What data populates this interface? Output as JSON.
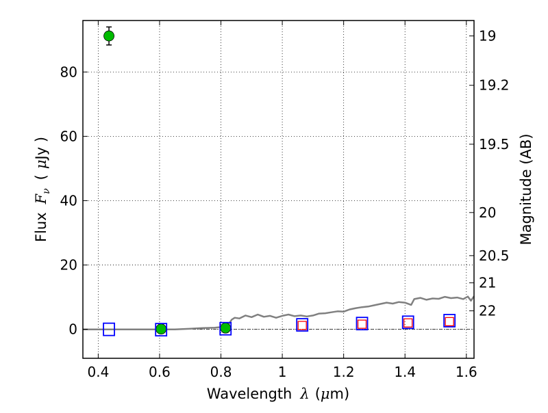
{
  "chart_data": {
    "type": "scatter",
    "xlabel": {
      "prefix": "Wavelength",
      "symbol": "λ",
      "unit_open": "(",
      "unit_mu": "μ",
      "unit_rest": "m)"
    },
    "ylabel": {
      "prefix": "Flux",
      "symbol": "F",
      "symbol_sub": "ν",
      "unit_open": "(",
      "unit_mu": "μ",
      "unit_rest": "Jy )"
    },
    "y2label": "Magnitude (AB)",
    "xlim": [
      0.35,
      1.625
    ],
    "ylim": [
      -9,
      96
    ],
    "grid": true,
    "x_ticks": [
      {
        "value": 0.4,
        "label": "0.4"
      },
      {
        "value": 0.6,
        "label": "0.6"
      },
      {
        "value": 0.8,
        "label": "0.8"
      },
      {
        "value": 1.0,
        "label": "1"
      },
      {
        "value": 1.2,
        "label": "1.2"
      },
      {
        "value": 1.4,
        "label": "1.4"
      },
      {
        "value": 1.6,
        "label": "1.6"
      }
    ],
    "y_ticks": [
      {
        "value": 0,
        "label": "0"
      },
      {
        "value": 20,
        "label": "20"
      },
      {
        "value": 40,
        "label": "40"
      },
      {
        "value": 60,
        "label": "60"
      },
      {
        "value": 80,
        "label": "80"
      }
    ],
    "y2_ticks": [
      {
        "value": 19.0,
        "label": "19"
      },
      {
        "value": 19.2,
        "label": "19.2"
      },
      {
        "value": 19.5,
        "label": "19.5"
      },
      {
        "value": 20.0,
        "label": "20"
      },
      {
        "value": 20.5,
        "label": "20.5"
      },
      {
        "value": 21.0,
        "label": "21"
      },
      {
        "value": 22.0,
        "label": "22"
      }
    ],
    "series": [
      {
        "kind": "line",
        "color": "#808080",
        "points": [
          [
            0.35,
            0
          ],
          [
            0.4,
            0
          ],
          [
            0.45,
            0
          ],
          [
            0.5,
            0
          ],
          [
            0.55,
            0
          ],
          [
            0.6,
            0
          ],
          [
            0.65,
            0
          ],
          [
            0.7,
            0.2
          ],
          [
            0.74,
            0.4
          ],
          [
            0.78,
            0.5
          ],
          [
            0.81,
            0.8
          ],
          [
            0.825,
            1.5
          ],
          [
            0.835,
            3.0
          ],
          [
            0.845,
            3.6
          ],
          [
            0.86,
            3.4
          ],
          [
            0.88,
            4.3
          ],
          [
            0.9,
            3.8
          ],
          [
            0.92,
            4.6
          ],
          [
            0.94,
            3.9
          ],
          [
            0.96,
            4.2
          ],
          [
            0.98,
            3.6
          ],
          [
            1.0,
            4.2
          ],
          [
            1.02,
            4.6
          ],
          [
            1.04,
            4.1
          ],
          [
            1.06,
            4.3
          ],
          [
            1.08,
            4.0
          ],
          [
            1.1,
            4.3
          ],
          [
            1.12,
            4.9
          ],
          [
            1.14,
            5.0
          ],
          [
            1.16,
            5.3
          ],
          [
            1.18,
            5.6
          ],
          [
            1.2,
            5.5
          ],
          [
            1.22,
            6.2
          ],
          [
            1.24,
            6.6
          ],
          [
            1.26,
            6.9
          ],
          [
            1.28,
            7.1
          ],
          [
            1.3,
            7.5
          ],
          [
            1.32,
            7.9
          ],
          [
            1.34,
            8.3
          ],
          [
            1.36,
            8.0
          ],
          [
            1.38,
            8.5
          ],
          [
            1.4,
            8.3
          ],
          [
            1.42,
            7.6
          ],
          [
            1.43,
            9.4
          ],
          [
            1.45,
            9.8
          ],
          [
            1.47,
            9.2
          ],
          [
            1.49,
            9.6
          ],
          [
            1.51,
            9.5
          ],
          [
            1.53,
            10.1
          ],
          [
            1.55,
            9.7
          ],
          [
            1.57,
            9.9
          ],
          [
            1.59,
            9.4
          ],
          [
            1.605,
            10.2
          ],
          [
            1.615,
            8.9
          ],
          [
            1.625,
            10.3
          ]
        ]
      },
      {
        "kind": "marker",
        "marker": "circle",
        "color": "#00bb00",
        "points": [
          {
            "x": 0.435,
            "y": 91.2,
            "yerr": 2.8
          },
          {
            "x": 0.605,
            "y": 0.1
          },
          {
            "x": 0.815,
            "y": 0.4
          }
        ]
      },
      {
        "kind": "marker",
        "marker": "square-open",
        "color": "#0000ff",
        "points": [
          {
            "x": 0.435,
            "y": 0.0
          },
          {
            "x": 0.605,
            "y": -0.1
          },
          {
            "x": 0.815,
            "y": 0.2
          },
          {
            "x": 1.065,
            "y": 1.4
          },
          {
            "x": 1.26,
            "y": 1.8
          },
          {
            "x": 1.41,
            "y": 2.2
          },
          {
            "x": 1.545,
            "y": 2.7
          }
        ]
      },
      {
        "kind": "marker",
        "marker": "square-open-small",
        "color": "#ff0000",
        "points": [
          {
            "x": 1.065,
            "y": 1.2
          },
          {
            "x": 1.26,
            "y": 1.6
          },
          {
            "x": 1.41,
            "y": 2.0
          },
          {
            "x": 1.545,
            "y": 2.4
          }
        ]
      }
    ]
  }
}
